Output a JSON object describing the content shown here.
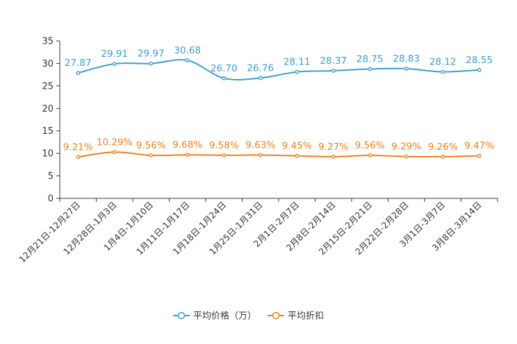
{
  "chart_data": {
    "type": "line",
    "title": "",
    "xlabel": "",
    "ylabel": "",
    "ylim": [
      0,
      35
    ],
    "yticks": [
      0,
      5,
      10,
      15,
      20,
      25,
      30,
      35
    ],
    "categories": [
      "12月21日-12月27日",
      "12月28日-1月3日",
      "1月4日-1月10日",
      "1月11日-1月17日",
      "1月18日-1月24日",
      "1月25日-1月31日",
      "2月1日-2月7日",
      "2月8日-2月14日",
      "2月15日-2月21日",
      "2月22日-2月28日",
      "3月1日-3月7日",
      "3月8日-3月14日"
    ],
    "series": [
      {
        "name": "平均价格（万）",
        "color": "#3d9ccf",
        "values": [
          27.87,
          29.91,
          29.97,
          30.68,
          26.7,
          26.76,
          28.11,
          28.37,
          28.75,
          28.83,
          28.12,
          28.55
        ],
        "labels": [
          "27.87",
          "29.91",
          "29.97",
          "30.68",
          "26.70",
          "26.76",
          "28.11",
          "28.37",
          "28.75",
          "28.83",
          "28.12",
          "28.55"
        ]
      },
      {
        "name": "平均折扣",
        "color": "#f07e1b",
        "values": [
          9.21,
          10.29,
          9.56,
          9.68,
          9.58,
          9.63,
          9.45,
          9.27,
          9.56,
          9.29,
          9.26,
          9.47
        ],
        "labels": [
          "9.21%",
          "10.29%",
          "9.56%",
          "9.68%",
          "9.58%",
          "9.63%",
          "9.45%",
          "9.27%",
          "9.56%",
          "9.29%",
          "9.26%",
          "9.47%"
        ]
      }
    ],
    "legend": {
      "position": "bottom-center"
    },
    "grid": false
  }
}
